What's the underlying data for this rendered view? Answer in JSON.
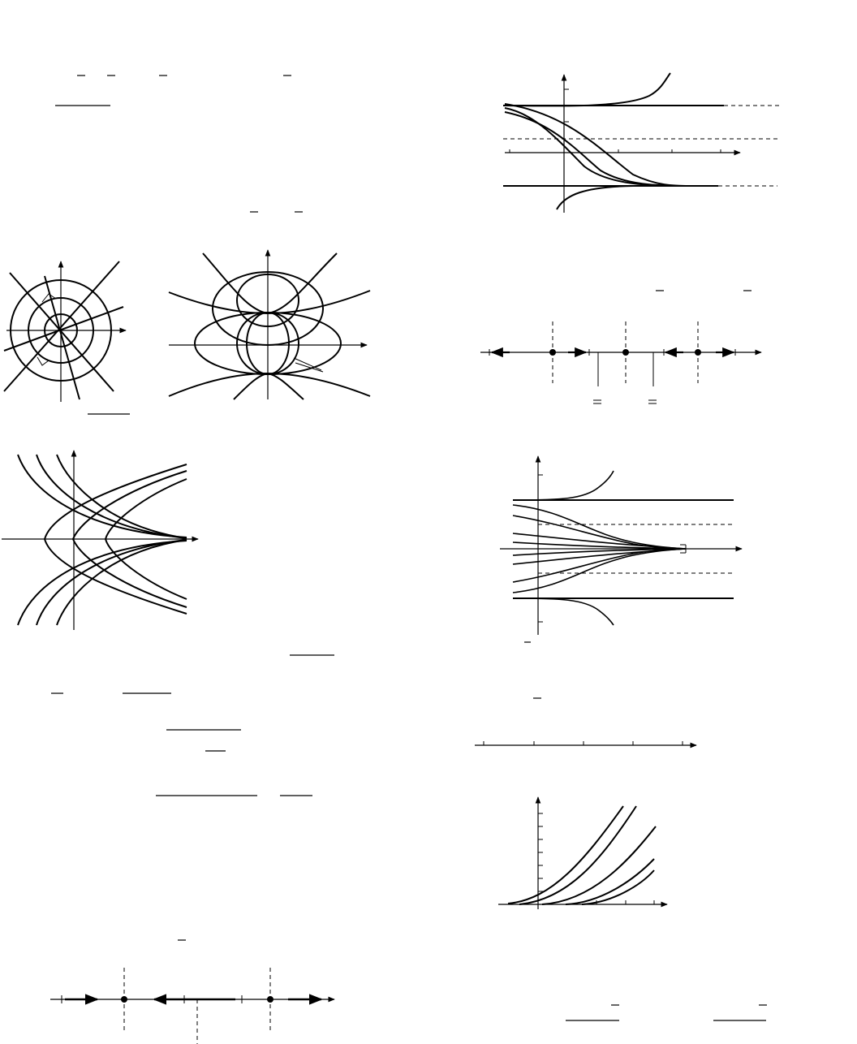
{
  "page": {
    "background": "#ffffff",
    "ink": "#000000"
  },
  "figures": [
    {
      "id": "orthogonal-polar",
      "description_visible_text": ""
    },
    {
      "id": "orthogonal-circles",
      "description_visible_text": ""
    },
    {
      "id": "parabola-family",
      "description_visible_text": ""
    },
    {
      "id": "logistic-solutions",
      "description_visible_text": ""
    },
    {
      "id": "phase-line-three-equilibria",
      "description_visible_text": ""
    },
    {
      "id": "solutions-four-equilibria",
      "description_visible_text": ""
    },
    {
      "id": "number-line",
      "description_visible_text": ""
    },
    {
      "id": "growing-curves",
      "description_visible_text": ""
    },
    {
      "id": "phase-line-two-equilibria",
      "description_visible_text": ""
    }
  ]
}
